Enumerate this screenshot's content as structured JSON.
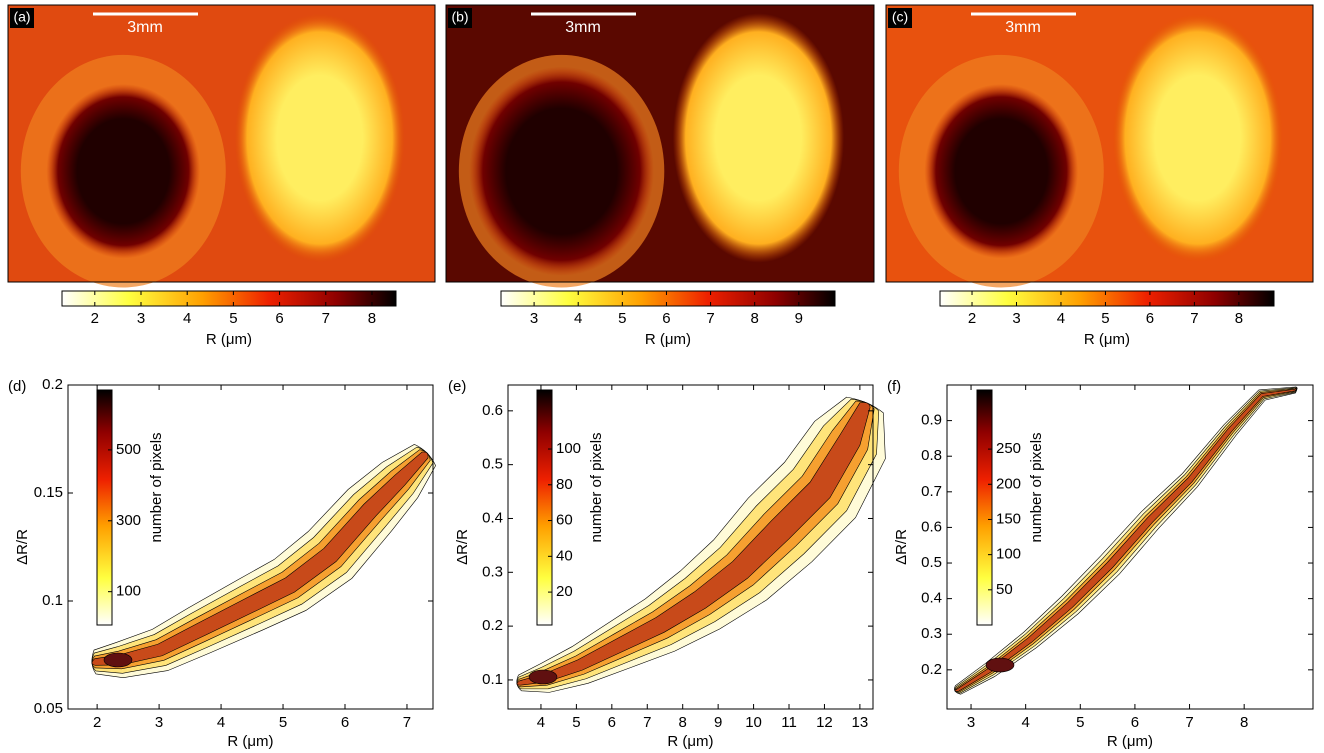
{
  "chart_data": [
    {
      "type": "heatmap",
      "panel_label": "(a)",
      "scale_bar": "3mm",
      "colorbar_label": "R (μm)",
      "clim": [
        1.29,
        8.52
      ],
      "cticks": [
        2,
        3,
        4,
        5,
        6,
        7,
        8
      ]
    },
    {
      "type": "heatmap",
      "panel_label": "(b)",
      "scale_bar": "3mm",
      "colorbar_label": "R (μm)",
      "clim": [
        2.25,
        9.82
      ],
      "cticks": [
        3,
        4,
        5,
        6,
        7,
        8,
        9
      ]
    },
    {
      "type": "heatmap",
      "panel_label": "(c)",
      "scale_bar": "3mm",
      "colorbar_label": "R (μm)",
      "clim": [
        1.28,
        8.79
      ],
      "cticks": [
        2,
        3,
        4,
        5,
        6,
        7,
        8
      ]
    },
    {
      "type": "contour",
      "panel_label": "(d)",
      "xlabel": "R (μm)",
      "ylabel": "ΔR/R",
      "xlim": [
        1.53,
        7.42
      ],
      "xticks": [
        2,
        3,
        4,
        5,
        6,
        7
      ],
      "ylim": [
        0.05,
        0.2
      ],
      "yticks": [
        0.05,
        0.1,
        0.15,
        0.2
      ],
      "colorbar_label": "number of pixels",
      "clim": [
        6,
        669
      ],
      "cticks": [
        100,
        300,
        500
      ]
    },
    {
      "type": "contour",
      "panel_label": "(e)",
      "xlabel": "R (μm)",
      "ylabel": "ΔR/R",
      "xlim": [
        3.07,
        13.37
      ],
      "xticks": [
        4,
        5,
        6,
        7,
        8,
        9,
        10,
        11,
        12,
        13
      ],
      "ylim": [
        0.046,
        0.648
      ],
      "yticks": [
        0.1,
        0.2,
        0.3,
        0.4,
        0.5,
        0.6
      ],
      "colorbar_label": "number of pixels",
      "clim": [
        1.6,
        133
      ],
      "cticks": [
        20,
        40,
        60,
        80,
        100
      ]
    },
    {
      "type": "contour",
      "panel_label": "(f)",
      "xlabel": "R (μm)",
      "ylabel": "ΔR/R",
      "xlim": [
        2.56,
        9.26
      ],
      "xticks": [
        3,
        4,
        5,
        6,
        7,
        8
      ],
      "ylim": [
        0.09,
        1.0
      ],
      "yticks": [
        0.2,
        0.3,
        0.4,
        0.5,
        0.6,
        0.7,
        0.8,
        0.9
      ],
      "colorbar_label": "number of pixels",
      "clim": [
        0,
        334
      ],
      "cticks": [
        50,
        100,
        150,
        200,
        250
      ]
    }
  ]
}
